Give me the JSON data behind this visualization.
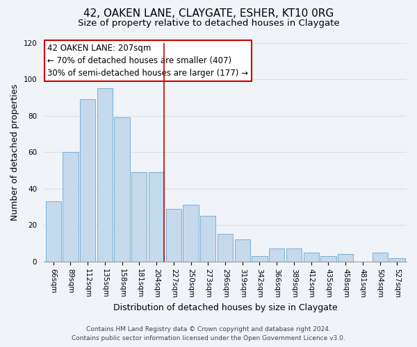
{
  "title": "42, OAKEN LANE, CLAYGATE, ESHER, KT10 0RG",
  "subtitle": "Size of property relative to detached houses in Claygate",
  "xlabel": "Distribution of detached houses by size in Claygate",
  "ylabel": "Number of detached properties",
  "categories": [
    "66sqm",
    "89sqm",
    "112sqm",
    "135sqm",
    "158sqm",
    "181sqm",
    "204sqm",
    "227sqm",
    "250sqm",
    "273sqm",
    "296sqm",
    "319sqm",
    "342sqm",
    "366sqm",
    "389sqm",
    "412sqm",
    "435sqm",
    "458sqm",
    "481sqm",
    "504sqm",
    "527sqm"
  ],
  "values": [
    33,
    60,
    89,
    95,
    79,
    49,
    49,
    29,
    31,
    25,
    15,
    12,
    3,
    7,
    7,
    5,
    3,
    4,
    0,
    5,
    2
  ],
  "bar_color": "#c5d9ec",
  "bar_edge_color": "#7aafd4",
  "highlight_index": 6,
  "highlight_line_color": "#cc0000",
  "ylim": [
    0,
    120
  ],
  "yticks": [
    0,
    20,
    40,
    60,
    80,
    100,
    120
  ],
  "annotation_title": "42 OAKEN LANE: 207sqm",
  "annotation_line1": "← 70% of detached houses are smaller (407)",
  "annotation_line2": "30% of semi-detached houses are larger (177) →",
  "annotation_box_color": "#ffffff",
  "annotation_box_edge": "#cc0000",
  "footer1": "Contains HM Land Registry data © Crown copyright and database right 2024.",
  "footer2": "Contains public sector information licensed under the Open Government Licence v3.0.",
  "background_color": "#f0f3f8",
  "grid_color": "#d8e0ea",
  "title_fontsize": 11,
  "subtitle_fontsize": 9.5,
  "axis_label_fontsize": 9,
  "tick_fontsize": 7.5,
  "annotation_fontsize": 8.5,
  "footer_fontsize": 6.5
}
